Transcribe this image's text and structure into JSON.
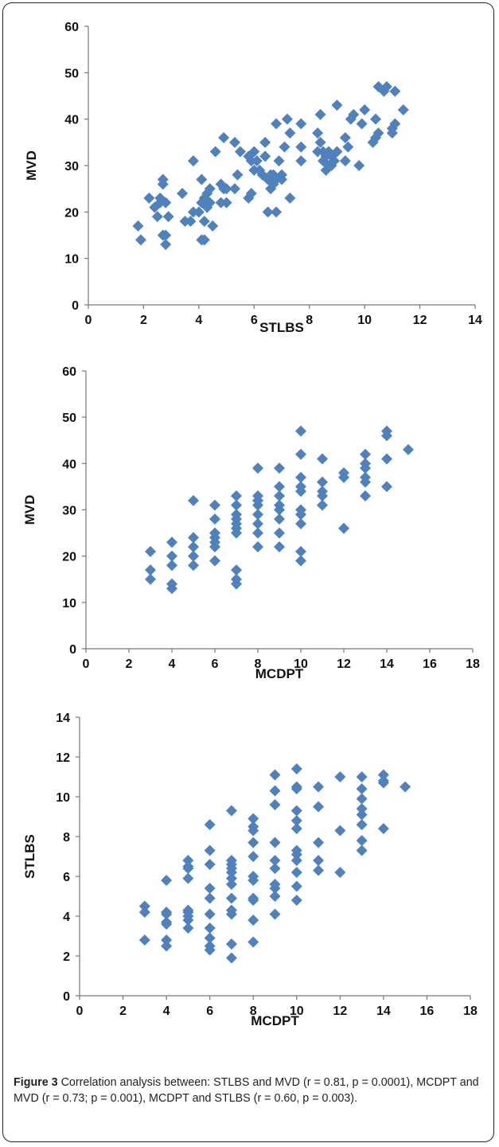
{
  "caption": {
    "label": "Figure 3",
    "text": " Correlation analysis between: STLBS and MVD (r = 0.81, p = 0.0001), MCDPT and MVD (r = 0.73; p = 0.001), MCDPT and STLBS (r = 0.60, p = 0.003)."
  },
  "chart_data": [
    {
      "type": "scatter",
      "xlabel": "STLBS",
      "ylabel": "MVD",
      "xlim": [
        0,
        14
      ],
      "ylim": [
        0,
        60
      ],
      "xticks": [
        0,
        2,
        4,
        6,
        8,
        10,
        12,
        14
      ],
      "yticks": [
        0,
        10,
        20,
        30,
        40,
        50,
        60
      ],
      "marker_color": "#4F81BD",
      "points": [
        [
          1.8,
          17
        ],
        [
          1.9,
          14
        ],
        [
          2.2,
          23
        ],
        [
          2.4,
          21
        ],
        [
          2.5,
          19
        ],
        [
          2.6,
          23
        ],
        [
          2.6,
          22
        ],
        [
          2.7,
          26
        ],
        [
          2.7,
          27
        ],
        [
          2.7,
          15
        ],
        [
          2.8,
          22
        ],
        [
          2.8,
          15
        ],
        [
          2.9,
          19
        ],
        [
          2.8,
          13
        ],
        [
          3.4,
          24
        ],
        [
          3.5,
          18
        ],
        [
          3.7,
          18
        ],
        [
          3.8,
          31
        ],
        [
          3.8,
          20
        ],
        [
          4.0,
          20
        ],
        [
          4.1,
          27
        ],
        [
          4.1,
          22
        ],
        [
          4.1,
          14
        ],
        [
          4.2,
          18
        ],
        [
          4.2,
          14
        ],
        [
          4.2,
          23
        ],
        [
          4.3,
          24
        ],
        [
          4.3,
          21
        ],
        [
          4.4,
          25
        ],
        [
          4.4,
          22
        ],
        [
          4.5,
          17
        ],
        [
          4.6,
          33
        ],
        [
          4.8,
          22
        ],
        [
          4.8,
          26
        ],
        [
          4.9,
          36
        ],
        [
          4.9,
          25
        ],
        [
          5.0,
          22
        ],
        [
          5.0,
          25
        ],
        [
          5.3,
          35
        ],
        [
          5.3,
          25
        ],
        [
          5.4,
          28
        ],
        [
          5.5,
          33
        ],
        [
          5.8,
          32
        ],
        [
          5.8,
          23
        ],
        [
          5.9,
          31
        ],
        [
          5.9,
          24
        ],
        [
          6.0,
          33
        ],
        [
          6.0,
          29
        ],
        [
          6.1,
          31
        ],
        [
          6.2,
          29
        ],
        [
          6.3,
          28
        ],
        [
          6.4,
          35
        ],
        [
          6.4,
          32
        ],
        [
          6.5,
          27
        ],
        [
          6.5,
          20
        ],
        [
          6.6,
          28
        ],
        [
          6.6,
          25
        ],
        [
          6.7,
          26
        ],
        [
          6.7,
          28
        ],
        [
          6.8,
          39
        ],
        [
          6.8,
          27
        ],
        [
          6.8,
          20
        ],
        [
          6.9,
          31
        ],
        [
          7.0,
          28
        ],
        [
          7.0,
          27
        ],
        [
          7.1,
          34
        ],
        [
          7.2,
          40
        ],
        [
          7.3,
          37
        ],
        [
          7.3,
          23
        ],
        [
          7.7,
          39
        ],
        [
          7.7,
          31
        ],
        [
          7.7,
          34
        ],
        [
          8.3,
          33
        ],
        [
          8.3,
          37
        ],
        [
          8.4,
          41
        ],
        [
          8.4,
          35
        ],
        [
          8.5,
          33
        ],
        [
          8.5,
          31
        ],
        [
          8.6,
          32
        ],
        [
          8.6,
          29
        ],
        [
          8.7,
          30
        ],
        [
          8.7,
          33
        ],
        [
          8.8,
          32
        ],
        [
          8.8,
          30
        ],
        [
          8.9,
          31
        ],
        [
          9.0,
          33
        ],
        [
          9.0,
          43
        ],
        [
          9.3,
          36
        ],
        [
          9.3,
          31
        ],
        [
          9.4,
          34
        ],
        [
          9.5,
          40
        ],
        [
          9.6,
          41
        ],
        [
          9.8,
          30
        ],
        [
          9.9,
          39
        ],
        [
          10.0,
          42
        ],
        [
          10.3,
          35
        ],
        [
          10.4,
          36
        ],
        [
          10.4,
          40
        ],
        [
          10.5,
          37
        ],
        [
          10.5,
          47
        ],
        [
          10.7,
          46
        ],
        [
          10.8,
          47
        ],
        [
          11.0,
          37
        ],
        [
          11.0,
          38
        ],
        [
          11.1,
          46
        ],
        [
          11.1,
          39
        ],
        [
          11.4,
          42
        ]
      ]
    },
    {
      "type": "scatter",
      "xlabel": "MCDPT",
      "ylabel": "MVD",
      "xlim": [
        0,
        18
      ],
      "ylim": [
        0,
        60
      ],
      "xticks": [
        0,
        2,
        4,
        6,
        8,
        10,
        12,
        14,
        16,
        18
      ],
      "yticks": [
        0,
        10,
        20,
        30,
        40,
        50,
        60
      ],
      "marker_color": "#4F81BD",
      "points": [
        [
          3,
          21
        ],
        [
          3,
          17
        ],
        [
          3,
          15
        ],
        [
          4,
          23
        ],
        [
          4,
          20
        ],
        [
          4,
          18
        ],
        [
          4,
          14
        ],
        [
          4,
          13
        ],
        [
          5,
          32
        ],
        [
          5,
          24
        ],
        [
          5,
          22
        ],
        [
          5,
          20
        ],
        [
          5,
          18
        ],
        [
          6,
          31
        ],
        [
          6,
          28
        ],
        [
          6,
          25
        ],
        [
          6,
          24
        ],
        [
          6,
          23
        ],
        [
          6,
          22
        ],
        [
          6,
          19
        ],
        [
          7,
          33
        ],
        [
          7,
          31
        ],
        [
          7,
          29
        ],
        [
          7,
          28
        ],
        [
          7,
          27
        ],
        [
          7,
          26
        ],
        [
          7,
          25
        ],
        [
          7,
          17
        ],
        [
          7,
          15
        ],
        [
          7,
          14
        ],
        [
          8,
          39
        ],
        [
          8,
          33
        ],
        [
          8,
          32
        ],
        [
          8,
          31
        ],
        [
          8,
          29
        ],
        [
          8,
          27
        ],
        [
          8,
          25
        ],
        [
          8,
          22
        ],
        [
          9,
          39
        ],
        [
          9,
          35
        ],
        [
          9,
          33
        ],
        [
          9,
          31
        ],
        [
          9,
          30
        ],
        [
          9,
          28
        ],
        [
          9,
          25
        ],
        [
          9,
          22
        ],
        [
          10,
          47
        ],
        [
          10,
          42
        ],
        [
          10,
          37
        ],
        [
          10,
          35
        ],
        [
          10,
          34
        ],
        [
          10,
          30
        ],
        [
          10,
          29
        ],
        [
          10,
          27
        ],
        [
          10,
          21
        ],
        [
          10,
          19
        ],
        [
          11,
          41
        ],
        [
          11,
          36
        ],
        [
          11,
          34
        ],
        [
          11,
          33
        ],
        [
          11,
          31
        ],
        [
          12,
          38
        ],
        [
          12,
          37
        ],
        [
          12,
          26
        ],
        [
          13,
          42
        ],
        [
          13,
          40
        ],
        [
          13,
          39
        ],
        [
          13,
          37
        ],
        [
          13,
          36
        ],
        [
          13,
          33
        ],
        [
          14,
          47
        ],
        [
          14,
          46
        ],
        [
          14,
          41
        ],
        [
          14,
          35
        ],
        [
          15,
          43
        ]
      ]
    },
    {
      "type": "scatter",
      "xlabel": "MCDPT",
      "ylabel": "STLBS",
      "xlim": [
        0,
        18
      ],
      "ylim": [
        0,
        14
      ],
      "xticks": [
        0,
        2,
        4,
        6,
        8,
        10,
        12,
        14,
        16,
        18
      ],
      "yticks": [
        0,
        2,
        4,
        6,
        8,
        10,
        12,
        14
      ],
      "marker_color": "#4F81BD",
      "points": [
        [
          3,
          4.5
        ],
        [
          3,
          4.2
        ],
        [
          3,
          2.8
        ],
        [
          4,
          5.8
        ],
        [
          4,
          4.2
        ],
        [
          4,
          4.1
        ],
        [
          4,
          3.7
        ],
        [
          4,
          3.6
        ],
        [
          4,
          2.8
        ],
        [
          4,
          2.5
        ],
        [
          5,
          6.8
        ],
        [
          5,
          6.5
        ],
        [
          5,
          6.4
        ],
        [
          5,
          5.9
        ],
        [
          5,
          4.3
        ],
        [
          5,
          4.2
        ],
        [
          5,
          4.0
        ],
        [
          5,
          3.8
        ],
        [
          5,
          3.4
        ],
        [
          6,
          8.6
        ],
        [
          6,
          7.3
        ],
        [
          6,
          6.6
        ],
        [
          6,
          5.4
        ],
        [
          6,
          4.9
        ],
        [
          6,
          4.1
        ],
        [
          6,
          3.4
        ],
        [
          6,
          2.9
        ],
        [
          6,
          2.5
        ],
        [
          6,
          2.3
        ],
        [
          7,
          9.3
        ],
        [
          7,
          6.8
        ],
        [
          7,
          6.6
        ],
        [
          7,
          6.4
        ],
        [
          7,
          6.2
        ],
        [
          7,
          5.9
        ],
        [
          7,
          5.6
        ],
        [
          7,
          4.9
        ],
        [
          7,
          4.3
        ],
        [
          7,
          4.1
        ],
        [
          7,
          2.6
        ],
        [
          7,
          1.9
        ],
        [
          8,
          8.9
        ],
        [
          8,
          8.5
        ],
        [
          8,
          8.3
        ],
        [
          8,
          7.7
        ],
        [
          8,
          7.0
        ],
        [
          8,
          6.0
        ],
        [
          8,
          5.8
        ],
        [
          8,
          4.9
        ],
        [
          8,
          4.8
        ],
        [
          8,
          3.8
        ],
        [
          8,
          2.7
        ],
        [
          9,
          11.1
        ],
        [
          9,
          10.3
        ],
        [
          9,
          9.6
        ],
        [
          9,
          7.7
        ],
        [
          9,
          6.8
        ],
        [
          9,
          6.4
        ],
        [
          9,
          5.6
        ],
        [
          9,
          5.4
        ],
        [
          9,
          5.0
        ],
        [
          9,
          4.1
        ],
        [
          10,
          11.4
        ],
        [
          10,
          10.5
        ],
        [
          10,
          10.4
        ],
        [
          10,
          9.3
        ],
        [
          10,
          8.8
        ],
        [
          10,
          8.4
        ],
        [
          10,
          7.3
        ],
        [
          10,
          7.1
        ],
        [
          10,
          6.8
        ],
        [
          10,
          6.2
        ],
        [
          10,
          5.5
        ],
        [
          10,
          4.8
        ],
        [
          11,
          10.5
        ],
        [
          11,
          9.5
        ],
        [
          11,
          7.7
        ],
        [
          11,
          6.8
        ],
        [
          11,
          6.3
        ],
        [
          12,
          11.0
        ],
        [
          12,
          8.3
        ],
        [
          12,
          6.2
        ],
        [
          13,
          11.0
        ],
        [
          13,
          10.4
        ],
        [
          13,
          9.9
        ],
        [
          13,
          9.4
        ],
        [
          13,
          9.1
        ],
        [
          13,
          8.6
        ],
        [
          13,
          7.8
        ],
        [
          13,
          7.3
        ],
        [
          14,
          11.1
        ],
        [
          14,
          10.8
        ],
        [
          14,
          10.7
        ],
        [
          14,
          8.4
        ],
        [
          15,
          10.5
        ]
      ]
    }
  ]
}
